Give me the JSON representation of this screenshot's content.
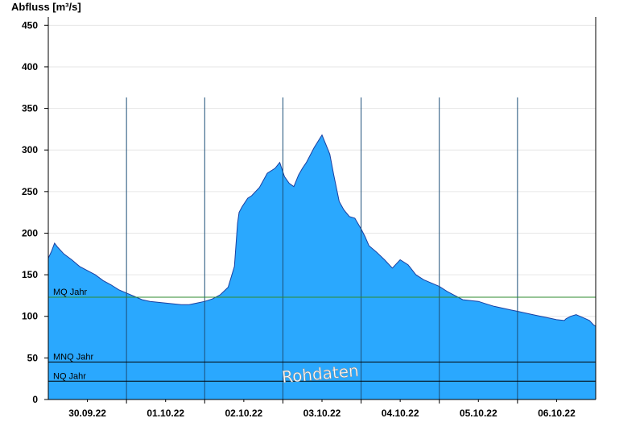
{
  "chart_data": {
    "type": "area",
    "ylabel": "Abfluss [m³/s]",
    "ylim": [
      0,
      460
    ],
    "yticks": [
      0,
      50,
      100,
      150,
      200,
      250,
      300,
      350,
      400,
      450
    ],
    "xlim": [
      0,
      7
    ],
    "x_unit": "days since 30.09.22 00:00",
    "date_labels": [
      {
        "x": 0.5,
        "label": "30.09.22"
      },
      {
        "x": 1.5,
        "label": "01.10.22"
      },
      {
        "x": 2.5,
        "label": "02.10.22"
      },
      {
        "x": 3.5,
        "label": "03.10.22"
      },
      {
        "x": 4.5,
        "label": "04.10.22"
      },
      {
        "x": 5.5,
        "label": "05.10.22"
      },
      {
        "x": 6.5,
        "label": "06.10.22"
      }
    ],
    "grid": "horizontal",
    "fill_color": "#2aa8fe",
    "reference_lines": [
      {
        "name": "MQ Jahr",
        "value": 123,
        "color": "#2e8b2e"
      },
      {
        "name": "MNQ Jahr",
        "value": 45,
        "color": "#000000"
      },
      {
        "name": "NQ Jahr",
        "value": 22,
        "color": "#000000"
      }
    ],
    "watermark": "Rohdaten",
    "series": [
      {
        "x": [
          0,
          0.04,
          0.08,
          0.12,
          0.2,
          0.3,
          0.4,
          0.5,
          0.6,
          0.7,
          0.8,
          0.9,
          1.0,
          1.1,
          1.2,
          1.3,
          1.4,
          1.5,
          1.6,
          1.7,
          1.8,
          1.9,
          2.0,
          2.1,
          2.2,
          2.3,
          2.38,
          2.42,
          2.44,
          2.48,
          2.55,
          2.6,
          2.7,
          2.8,
          2.9,
          2.96,
          3.02,
          3.08,
          3.14,
          3.2,
          3.25,
          3.3,
          3.4,
          3.5,
          3.6,
          3.65,
          3.72,
          3.78,
          3.85,
          3.92,
          4.0,
          4.05,
          4.1,
          4.2,
          4.3,
          4.4,
          4.5,
          4.6,
          4.7,
          4.8,
          4.9,
          5.0,
          5.1,
          5.2,
          5.3,
          5.5,
          5.6,
          5.7,
          5.8,
          5.9,
          6.0,
          6.1,
          6.2,
          6.3,
          6.4,
          6.5,
          6.6,
          6.62,
          6.68,
          6.75,
          6.85,
          6.92,
          6.97,
          7.0
        ],
        "y": [
          170,
          178,
          188,
          183,
          175,
          168,
          160,
          155,
          150,
          143,
          138,
          132,
          128,
          124,
          120,
          118,
          117,
          116,
          115,
          114,
          114,
          116,
          118,
          121,
          126,
          135,
          160,
          212,
          225,
          232,
          242,
          245,
          255,
          272,
          278,
          285,
          268,
          260,
          256,
          270,
          278,
          285,
          303,
          318,
          295,
          270,
          238,
          228,
          220,
          218,
          205,
          196,
          185,
          177,
          168,
          158,
          168,
          162,
          150,
          144,
          140,
          136,
          130,
          125,
          120,
          118,
          115,
          112,
          110,
          108,
          106,
          104,
          102,
          100,
          98,
          96,
          95,
          97,
          100,
          102,
          98,
          95,
          90,
          88
        ]
      }
    ]
  }
}
